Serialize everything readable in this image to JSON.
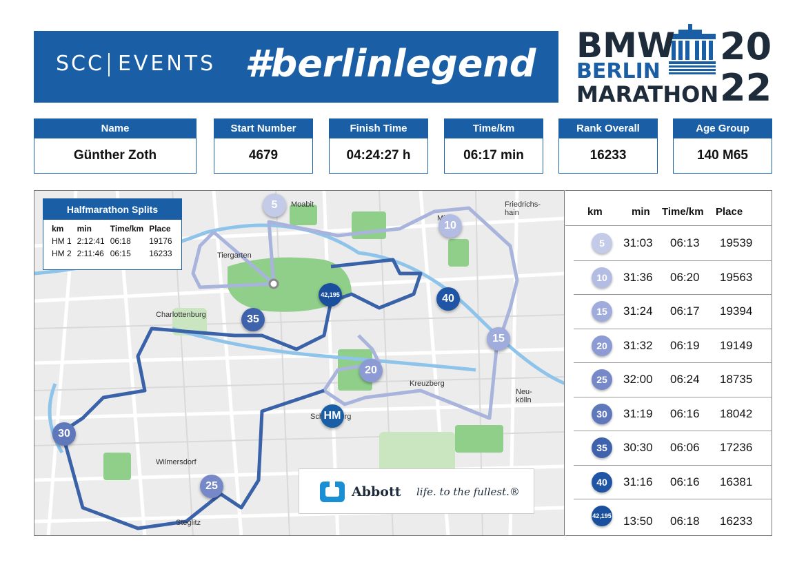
{
  "header": {
    "logo_scc": "SCC",
    "logo_events": "EVENTS",
    "hashtag": "#berlinlegend",
    "event_logo": {
      "line1": "BMW",
      "line2": "BERLIN",
      "line3": "MARATHON",
      "year1": "20",
      "year2": "22"
    }
  },
  "info": [
    {
      "label": "Name",
      "value": "Günther Zoth"
    },
    {
      "label": "Start Number",
      "value": "4679"
    },
    {
      "label": "Finish Time",
      "value": "04:24:27 h"
    },
    {
      "label": "Time/km",
      "value": "06:17 min"
    },
    {
      "label": "Rank Overall",
      "value": "16233"
    },
    {
      "label": "Age Group",
      "value": "140 M65"
    }
  ],
  "halfmarathon": {
    "title": "Halfmarathon Splits",
    "columns": [
      "km",
      "min",
      "Time/km",
      "Place"
    ],
    "rows": [
      [
        "HM 1",
        "2:12:41",
        "06:18",
        "19176"
      ],
      [
        "HM 2",
        "2:11:46",
        "06:15",
        "16233"
      ]
    ]
  },
  "map": {
    "markers": [
      "5",
      "10",
      "15",
      "20",
      "25",
      "30",
      "35",
      "40",
      "42,195",
      "HM"
    ],
    "places": [
      "Moabit",
      "Tiergarten",
      "Charlottenburg",
      "Wilmersdorf",
      "Steglitz",
      "Kreuzberg",
      "Neu-kölln",
      "Friedrichs-hain",
      "Mitte",
      "Schöneberg"
    ],
    "sponsor": {
      "name": "Abbott",
      "slogan": "life. to the fullest.®"
    },
    "colors": {
      "route_dark": "#3a62a8",
      "route_light": "#a9b4dc",
      "park": "#8fcf8a",
      "water": "#8fc4ea",
      "accent": "#1a5fa6"
    }
  },
  "splits": {
    "columns": [
      "km",
      "min",
      "Time/km",
      "Place"
    ],
    "rows": [
      {
        "km": "5",
        "min": "31:03",
        "pace": "06:13",
        "place": "19539",
        "color": "#c3cbe8"
      },
      {
        "km": "10",
        "min": "31:36",
        "pace": "06:20",
        "place": "19563",
        "color": "#b3bde4"
      },
      {
        "km": "15",
        "min": "31:24",
        "pace": "06:17",
        "place": "19394",
        "color": "#9facdc"
      },
      {
        "km": "20",
        "min": "31:32",
        "pace": "06:19",
        "place": "19149",
        "color": "#8c9bd3"
      },
      {
        "km": "25",
        "min": "32:00",
        "pace": "06:24",
        "place": "18735",
        "color": "#7688c8"
      },
      {
        "km": "30",
        "min": "31:19",
        "pace": "06:16",
        "place": "18042",
        "color": "#5f77bb"
      },
      {
        "km": "35",
        "min": "30:30",
        "pace": "06:06",
        "place": "17236",
        "color": "#3f62ad"
      },
      {
        "km": "40",
        "min": "31:16",
        "pace": "06:16",
        "place": "16381",
        "color": "#1f55a4"
      },
      {
        "km": "42,195",
        "min": "13:50",
        "pace": "06:18",
        "place": "16233",
        "color": "#1a4f9e"
      }
    ]
  }
}
